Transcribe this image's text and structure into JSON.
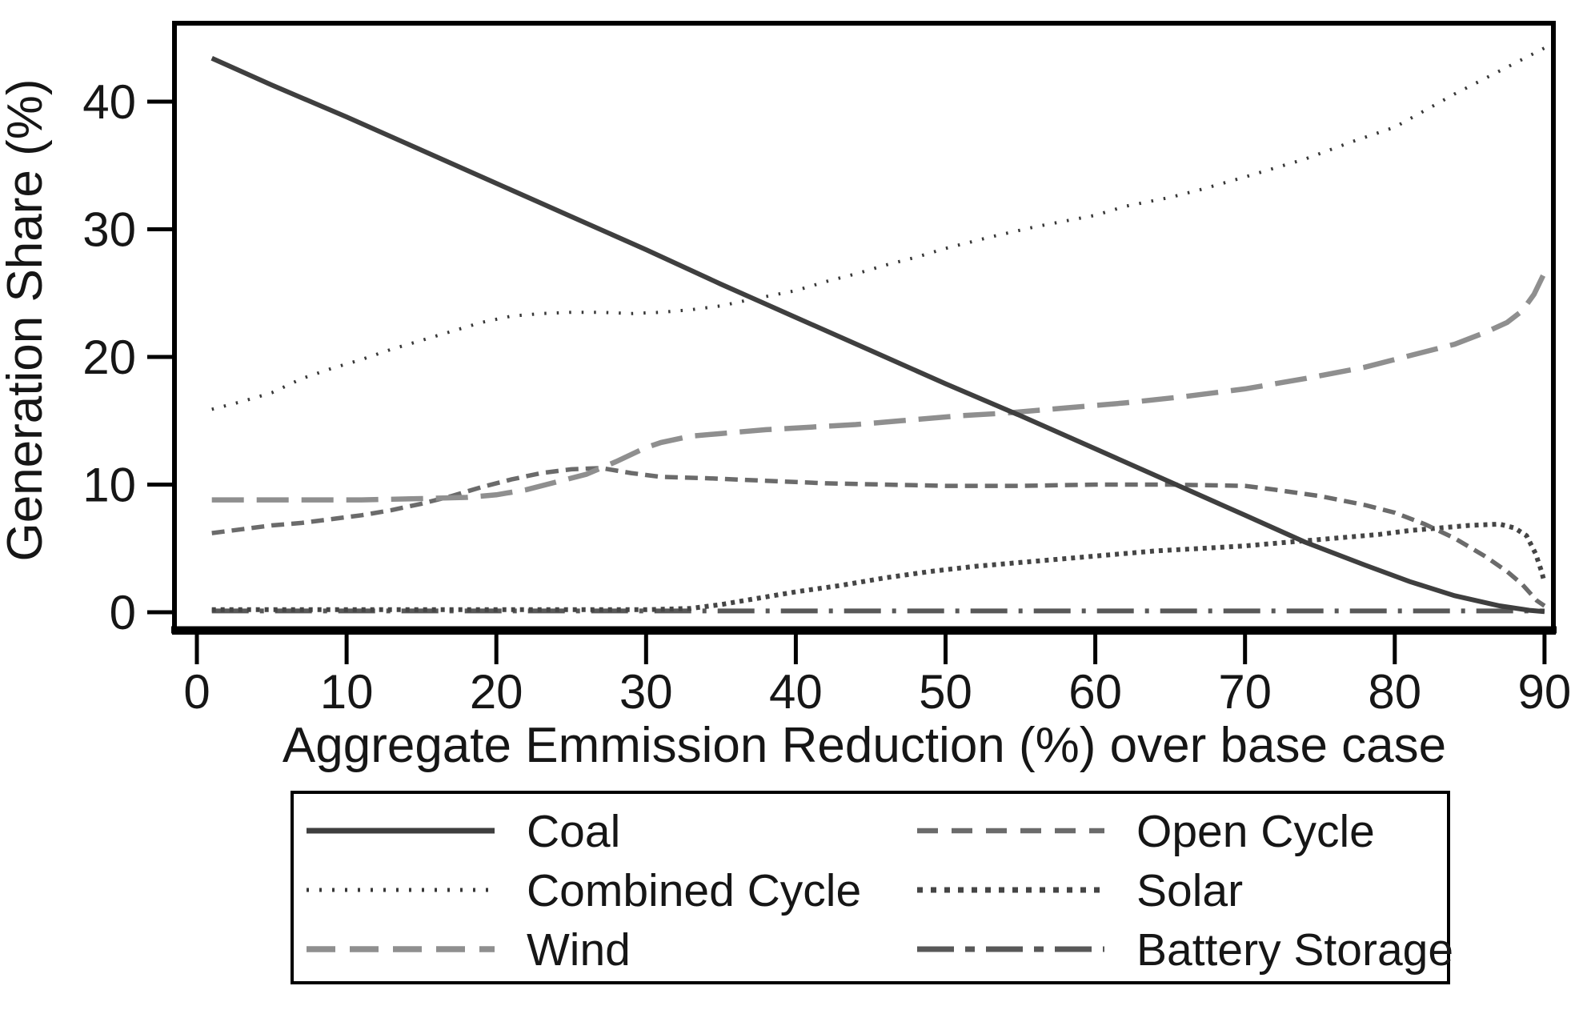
{
  "chart_data": {
    "type": "line",
    "title": "",
    "xlabel": "Aggregate Emmission Reduction (%) over base case",
    "ylabel": "Generation Share (%)",
    "xlim": [
      -1.5,
      90.5
    ],
    "ylim": [
      -1.6,
      46.2
    ],
    "x_ticks": [
      0,
      10,
      20,
      30,
      40,
      50,
      60,
      70,
      80,
      90
    ],
    "y_ticks": [
      0,
      10,
      20,
      30,
      40
    ],
    "grid": false,
    "legend_position": "bottom",
    "legend_columns": [
      [
        "Coal",
        "Combined Cycle",
        "Wind"
      ],
      [
        "Open Cycle",
        "Solar",
        "Battery Storage"
      ]
    ],
    "series": [
      {
        "name": "Battery Storage",
        "pattern": "long-dash-dot",
        "color": "#585858",
        "points": [
          [
            1,
            0.1
          ],
          [
            20,
            0.1
          ],
          [
            40,
            0.1
          ],
          [
            60,
            0.1
          ],
          [
            75,
            0.1
          ],
          [
            90,
            0.1
          ]
        ]
      },
      {
        "name": "Solar",
        "pattern": "dense-dot",
        "color": "#454545",
        "points": [
          [
            1,
            0.2
          ],
          [
            10,
            0.2
          ],
          [
            20,
            0.2
          ],
          [
            30,
            0.2
          ],
          [
            33,
            0.3
          ],
          [
            35,
            0.6
          ],
          [
            37,
            1.0
          ],
          [
            40,
            1.6
          ],
          [
            43,
            2.1
          ],
          [
            46,
            2.7
          ],
          [
            49,
            3.2
          ],
          [
            52,
            3.6
          ],
          [
            55,
            3.9
          ],
          [
            58,
            4.2
          ],
          [
            61,
            4.5
          ],
          [
            64,
            4.8
          ],
          [
            67,
            5.0
          ],
          [
            70,
            5.2
          ],
          [
            73,
            5.5
          ],
          [
            76,
            5.8
          ],
          [
            79,
            6.1
          ],
          [
            81,
            6.4
          ],
          [
            83,
            6.6
          ],
          [
            85,
            6.8
          ],
          [
            87,
            6.9
          ],
          [
            88,
            6.6
          ],
          [
            88.8,
            6.0
          ],
          [
            89.4,
            4.6
          ],
          [
            89.8,
            3.2
          ],
          [
            90,
            2.3
          ]
        ]
      },
      {
        "name": "Open Cycle",
        "pattern": "dash",
        "color": "#6b6b6b",
        "points": [
          [
            1,
            6.2
          ],
          [
            3,
            6.5
          ],
          [
            5,
            6.8
          ],
          [
            7,
            7.0
          ],
          [
            9,
            7.3
          ],
          [
            11,
            7.6
          ],
          [
            13,
            8.0
          ],
          [
            15,
            8.5
          ],
          [
            17,
            9.1
          ],
          [
            19,
            9.8
          ],
          [
            21,
            10.4
          ],
          [
            23,
            10.9
          ],
          [
            25,
            11.2
          ],
          [
            27,
            11.3
          ],
          [
            29,
            10.9
          ],
          [
            31,
            10.6
          ],
          [
            34,
            10.5
          ],
          [
            38,
            10.3
          ],
          [
            42,
            10.1
          ],
          [
            46,
            10.0
          ],
          [
            50,
            9.9
          ],
          [
            55,
            9.9
          ],
          [
            60,
            10.0
          ],
          [
            65,
            10.0
          ],
          [
            70,
            9.9
          ],
          [
            72,
            9.6
          ],
          [
            75,
            9.1
          ],
          [
            78,
            8.4
          ],
          [
            80,
            7.8
          ],
          [
            82,
            6.9
          ],
          [
            84,
            5.8
          ],
          [
            86,
            4.4
          ],
          [
            87.5,
            3.2
          ],
          [
            88.5,
            2.2
          ],
          [
            89.5,
            0.9
          ],
          [
            90,
            0.5
          ]
        ]
      },
      {
        "name": "Wind",
        "pattern": "long-dash",
        "color": "#8f8f8f",
        "points": [
          [
            1,
            8.8
          ],
          [
            6,
            8.8
          ],
          [
            11,
            8.8
          ],
          [
            15,
            8.9
          ],
          [
            18,
            9.0
          ],
          [
            20,
            9.2
          ],
          [
            22,
            9.6
          ],
          [
            24,
            10.2
          ],
          [
            26,
            10.8
          ],
          [
            28,
            11.8
          ],
          [
            30,
            12.9
          ],
          [
            31,
            13.3
          ],
          [
            33,
            13.8
          ],
          [
            35,
            14.0
          ],
          [
            38,
            14.3
          ],
          [
            41,
            14.5
          ],
          [
            44,
            14.7
          ],
          [
            47,
            15.0
          ],
          [
            51,
            15.4
          ],
          [
            54,
            15.6
          ],
          [
            58,
            16.0
          ],
          [
            62,
            16.4
          ],
          [
            66,
            16.9
          ],
          [
            70,
            17.5
          ],
          [
            74,
            18.3
          ],
          [
            78,
            19.2
          ],
          [
            81,
            20.1
          ],
          [
            84,
            21.0
          ],
          [
            86,
            21.9
          ],
          [
            87.5,
            22.7
          ],
          [
            88.5,
            23.6
          ],
          [
            89.3,
            24.9
          ],
          [
            90,
            26.6
          ]
        ]
      },
      {
        "name": "Combined Cycle",
        "pattern": "sparse-dot",
        "color": "#383838",
        "points": [
          [
            1,
            15.9
          ],
          [
            3,
            16.5
          ],
          [
            5,
            17.2
          ],
          [
            7,
            18.3
          ],
          [
            9,
            19.1
          ],
          [
            11,
            19.8
          ],
          [
            13,
            20.6
          ],
          [
            15,
            21.3
          ],
          [
            17,
            22.0
          ],
          [
            19,
            22.7
          ],
          [
            21,
            23.2
          ],
          [
            23,
            23.4
          ],
          [
            25,
            23.5
          ],
          [
            27,
            23.5
          ],
          [
            29,
            23.4
          ],
          [
            31,
            23.5
          ],
          [
            33,
            23.7
          ],
          [
            35,
            24.0
          ],
          [
            37,
            24.5
          ],
          [
            40,
            25.2
          ],
          [
            42,
            25.9
          ],
          [
            44,
            26.5
          ],
          [
            46,
            27.2
          ],
          [
            48,
            27.8
          ],
          [
            50,
            28.5
          ],
          [
            53,
            29.4
          ],
          [
            56,
            30.2
          ],
          [
            60,
            31.1
          ],
          [
            62,
            31.8
          ],
          [
            65,
            32.5
          ],
          [
            67,
            33.1
          ],
          [
            70,
            34.1
          ],
          [
            72,
            34.8
          ],
          [
            74,
            35.5
          ],
          [
            77,
            36.8
          ],
          [
            80,
            38.0
          ],
          [
            82,
            39.3
          ],
          [
            84,
            40.6
          ],
          [
            86,
            41.8
          ],
          [
            88,
            43.0
          ],
          [
            90,
            44.2
          ]
        ]
      },
      {
        "name": "Coal",
        "pattern": "solid",
        "color": "#3f3f3f",
        "points": [
          [
            1,
            43.4
          ],
          [
            5,
            41.3
          ],
          [
            10,
            38.8
          ],
          [
            15,
            36.2
          ],
          [
            20,
            33.6
          ],
          [
            25,
            31.0
          ],
          [
            30,
            28.4
          ],
          [
            35,
            25.7
          ],
          [
            40,
            23.1
          ],
          [
            45,
            20.5
          ],
          [
            50,
            17.9
          ],
          [
            55,
            15.4
          ],
          [
            60,
            12.8
          ],
          [
            65,
            10.2
          ],
          [
            70,
            7.6
          ],
          [
            74,
            5.5
          ],
          [
            78,
            3.7
          ],
          [
            81,
            2.4
          ],
          [
            84,
            1.3
          ],
          [
            87,
            0.5
          ],
          [
            89,
            0.15
          ],
          [
            90,
            0.05
          ]
        ]
      }
    ]
  }
}
